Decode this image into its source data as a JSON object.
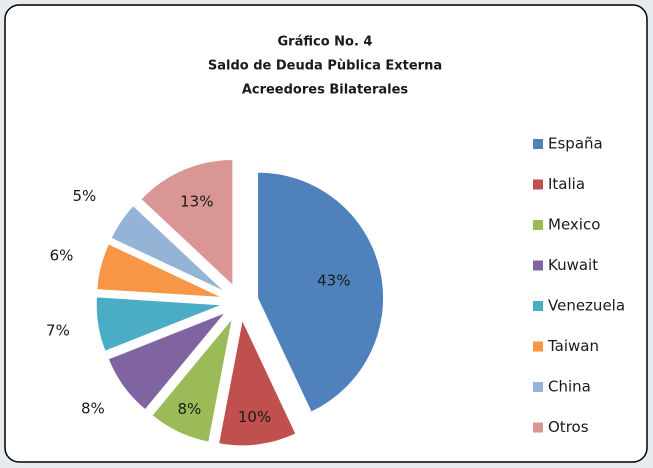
{
  "chart_data": {
    "type": "pie",
    "title": [
      "Gráfico No. 4",
      "Saldo de Deuda Pùblica Externa",
      "Acreedores Bilaterales"
    ],
    "categories": [
      "España",
      "Italia",
      "Mexico",
      "Kuwait",
      "Venezuela",
      "Taiwan",
      "China",
      "Otros"
    ],
    "values": [
      43,
      10,
      8,
      8,
      7,
      6,
      5,
      13
    ],
    "value_labels": [
      "43%",
      "10%",
      "8%",
      "8%",
      "7%",
      "6%",
      "5%",
      "13%"
    ],
    "colors": [
      "#4f81bd",
      "#c0504d",
      "#9bbb59",
      "#8064a2",
      "#4bacc6",
      "#f79646",
      "#95b3d7",
      "#d99694"
    ],
    "legend": "right"
  }
}
